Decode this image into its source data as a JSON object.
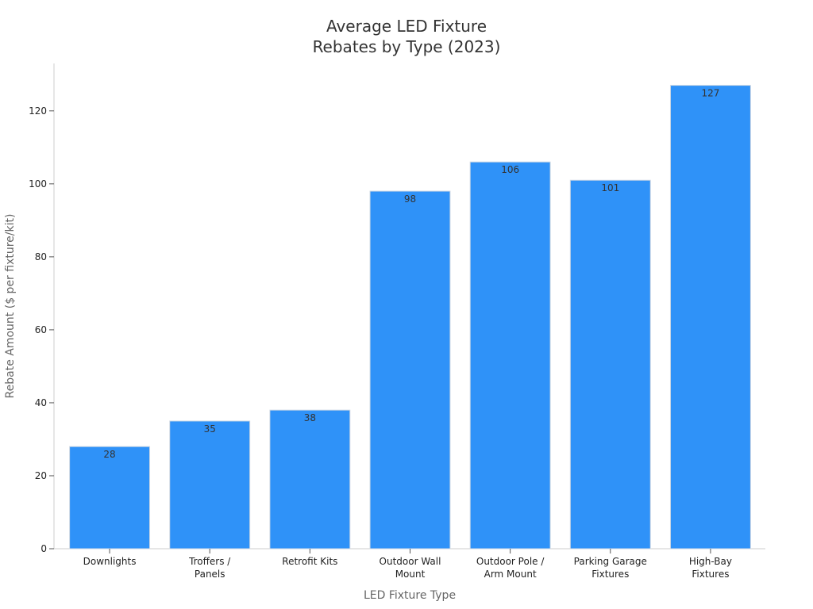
{
  "chart_data": {
    "type": "bar",
    "title": [
      "Average LED Fixture",
      "Rebates by Type (2023)"
    ],
    "xlabel": "LED Fixture Type",
    "ylabel": "Rebate Amount ($ per fixture/kit)",
    "categories": [
      [
        "Downlights"
      ],
      [
        "Troffers /",
        "Panels"
      ],
      [
        "Retrofit Kits"
      ],
      [
        "Outdoor Wall",
        "Mount"
      ],
      [
        "Outdoor Pole /",
        "Arm Mount"
      ],
      [
        "Parking Garage",
        "Fixtures"
      ],
      [
        "High-Bay",
        "Fixtures"
      ]
    ],
    "values": [
      28,
      35,
      38,
      98,
      106,
      101,
      127
    ],
    "ylim": [
      0,
      133
    ],
    "yticks": [
      0,
      20,
      40,
      60,
      80,
      100,
      120
    ],
    "bar_color": "#2f92f8",
    "grid": false,
    "legend": "none"
  }
}
